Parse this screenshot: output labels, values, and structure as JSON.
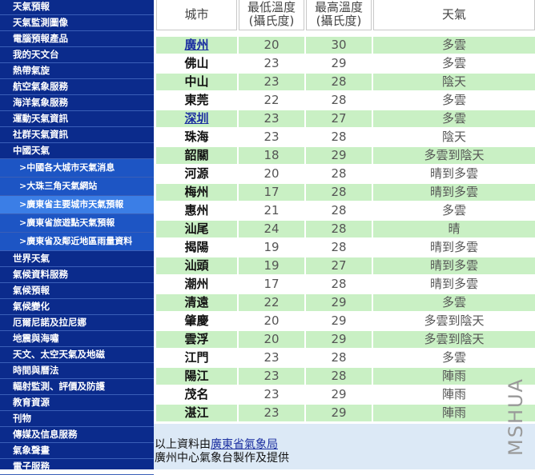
{
  "nav": {
    "items": [
      {
        "label": "天氣預報"
      },
      {
        "label": "天氣監測圖像"
      },
      {
        "label": "電腦預報產品"
      },
      {
        "label": "我的天文台"
      },
      {
        "label": "熱帶氣旋"
      },
      {
        "label": "航空氣象服務"
      },
      {
        "label": "海洋氣象服務"
      },
      {
        "label": "運動天氣資訊"
      },
      {
        "label": "社群天氣資訊"
      },
      {
        "label": "中國天氣"
      },
      {
        "label": "中國各大城市天氣消息",
        "sub": true
      },
      {
        "label": "大珠三角天氣網站",
        "sub": true
      },
      {
        "label": "廣東省主要城市天氣預報",
        "sub": true,
        "active": true
      },
      {
        "label": "廣東省旅遊點天氣預報",
        "sub": true
      },
      {
        "label": "廣東省及鄰近地區雨量資料",
        "sub": true
      },
      {
        "label": "世界天氣"
      },
      {
        "label": "氣候資料服務"
      },
      {
        "label": "氣候預報"
      },
      {
        "label": "氣候變化"
      },
      {
        "label": "厄爾尼諾及拉尼娜"
      },
      {
        "label": "地震與海嘯"
      },
      {
        "label": "天文、太空天氣及地磁"
      },
      {
        "label": "時間與曆法"
      },
      {
        "label": "輻射監測、評價及防護"
      },
      {
        "label": "教育資源"
      },
      {
        "label": "刊物"
      },
      {
        "label": "傳媒及信息服務"
      },
      {
        "label": "氣象聲畫"
      },
      {
        "label": "電子服務"
      }
    ]
  },
  "table": {
    "header": [
      [
        "城市"
      ],
      [
        "最低溫度",
        "(攝氏度)"
      ],
      [
        "最高溫度",
        "(攝氏度)"
      ],
      [
        "天氣"
      ]
    ],
    "rows": [
      [
        "廣州",
        20,
        30,
        "多雲"
      ],
      [
        "佛山",
        23,
        29,
        "多雲"
      ],
      [
        "中山",
        23,
        28,
        "陰天"
      ],
      [
        "東莞",
        22,
        28,
        "多雲"
      ],
      [
        "深圳",
        23,
        27,
        "多雲"
      ],
      [
        "珠海",
        23,
        28,
        "陰天"
      ],
      [
        "韶關",
        18,
        29,
        "多雲到陰天"
      ],
      [
        "河源",
        20,
        28,
        "晴到多雲"
      ],
      [
        "梅州",
        17,
        28,
        "晴到多雲"
      ],
      [
        "惠州",
        21,
        28,
        "多雲"
      ],
      [
        "汕尾",
        24,
        28,
        "晴"
      ],
      [
        "揭陽",
        19,
        28,
        "晴到多雲"
      ],
      [
        "汕頭",
        19,
        27,
        "晴到多雲"
      ],
      [
        "潮州",
        17,
        28,
        "晴到多雲"
      ],
      [
        "清遠",
        22,
        29,
        "多雲"
      ],
      [
        "肇慶",
        20,
        29,
        "多雲到陰天"
      ],
      [
        "雲浮",
        20,
        29,
        "多雲到陰天"
      ],
      [
        "江門",
        23,
        28,
        "多雲"
      ],
      [
        "陽江",
        23,
        28,
        "陣雨"
      ],
      [
        "茂名",
        23,
        29,
        "陣雨"
      ],
      [
        "湛江",
        23,
        29,
        "陣雨"
      ]
    ],
    "linked_rows": [
      0,
      4
    ]
  },
  "footer": {
    "prefix": "以上資料由",
    "link": "廣東省氣象局",
    "line2": "廣州中心氣象台製作及提供"
  },
  "watermark": "MSHUA"
}
